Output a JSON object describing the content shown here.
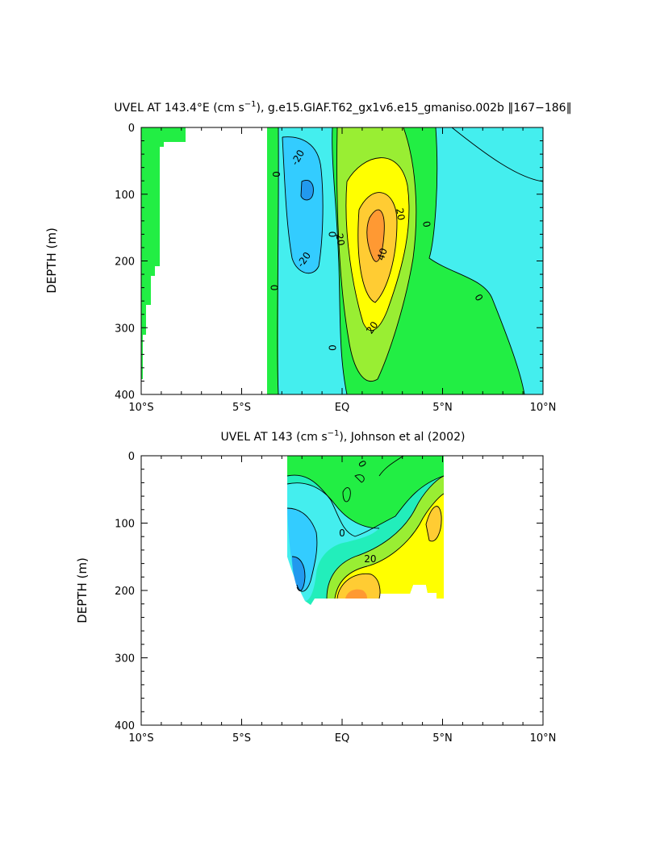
{
  "colors": {
    "c_le_m30": "#2299ee",
    "c_m30_m20": "#33ccff",
    "c_m20_m10": "#44eeee",
    "c_m10_0": "#22eebb",
    "c_0_10": "#22ee44",
    "c_10_20": "#99ee33",
    "c_20_30": "#ffff00",
    "c_30_40": "#ffcc33",
    "c_ge_40": "#ff9933",
    "land_green": "#22ee44",
    "axis": "#000000"
  },
  "chart_data": [
    {
      "type": "heatmap",
      "title": "UVEL AT 143.4°E (cm s⁻¹), g.e15.GIAF.T62_gx1v6.e15_gmaniso.002b ‖167−186‖",
      "title_main": "UVEL AT 143.4°E (cm s",
      "title_sup": "−1",
      "title_rest": "), g.e15.GIAF.T62_gx1v6.e15_gmaniso.002b ‖167−186‖",
      "xlabel": "",
      "ylabel": "DEPTH (m)",
      "xlim": [
        -10,
        10
      ],
      "ylim": [
        400,
        0
      ],
      "x_ticks": [
        {
          "value": -10,
          "label": "10°S"
        },
        {
          "value": -5,
          "label": "5°S"
        },
        {
          "value": 0,
          "label": "EQ"
        },
        {
          "value": 5,
          "label": "5°N"
        },
        {
          "value": 10,
          "label": "10°N"
        }
      ],
      "y_ticks": [
        {
          "value": 0,
          "label": "0"
        },
        {
          "value": 100,
          "label": "100"
        },
        {
          "value": 200,
          "label": "200"
        },
        {
          "value": 300,
          "label": "300"
        },
        {
          "value": 400,
          "label": "400"
        }
      ],
      "contour_labels": [
        {
          "x": -3.3,
          "y": 70,
          "text": "0",
          "angle": 90
        },
        {
          "x": -3.4,
          "y": 240,
          "text": "0",
          "angle": 90
        },
        {
          "x": -2.2,
          "y": 45,
          "text": "-20",
          "angle": -60
        },
        {
          "x": -1.9,
          "y": 198,
          "text": "-20",
          "angle": -55
        },
        {
          "x": -0.5,
          "y": 330,
          "text": "0",
          "angle": 90
        },
        {
          "x": -0.5,
          "y": 160,
          "text": "0",
          "angle": 90
        },
        {
          "x": -0.1,
          "y": 168,
          "text": "20",
          "angle": 80
        },
        {
          "x": 2.0,
          "y": 190,
          "text": "40",
          "angle": -70
        },
        {
          "x": 1.5,
          "y": 300,
          "text": "20",
          "angle": -55
        },
        {
          "x": 2.9,
          "y": 130,
          "text": "20",
          "angle": 80
        },
        {
          "x": 4.2,
          "y": 145,
          "text": "0",
          "angle": 80
        },
        {
          "x": 6.8,
          "y": 255,
          "text": "0",
          "angle": 60
        }
      ]
    },
    {
      "type": "heatmap",
      "title": "UVEL AT 143 (cm s⁻¹), Johnson et al (2002)",
      "title_main": "UVEL AT 143 (cm s",
      "title_sup": "−1",
      "title_rest": "), Johnson et al (2002)",
      "xlabel": "",
      "ylabel": "DEPTH (m)",
      "xlim": [
        -10,
        10
      ],
      "ylim": [
        400,
        0
      ],
      "x_ticks": [
        {
          "value": -10,
          "label": "10°S"
        },
        {
          "value": -5,
          "label": "5°S"
        },
        {
          "value": 0,
          "label": "EQ"
        },
        {
          "value": 5,
          "label": "5°N"
        },
        {
          "value": 10,
          "label": "10°N"
        }
      ],
      "y_ticks": [
        {
          "value": 0,
          "label": "0"
        },
        {
          "value": 100,
          "label": "100"
        },
        {
          "value": 200,
          "label": "200"
        },
        {
          "value": 300,
          "label": "300"
        },
        {
          "value": 400,
          "label": "400"
        }
      ],
      "contour_labels": [
        {
          "x": 1.0,
          "y": 12,
          "text": "0",
          "angle": 60
        },
        {
          "x": 0.0,
          "y": 115,
          "text": "0",
          "angle": 0
        },
        {
          "x": 1.4,
          "y": 153,
          "text": "20",
          "angle": 0
        }
      ]
    }
  ]
}
